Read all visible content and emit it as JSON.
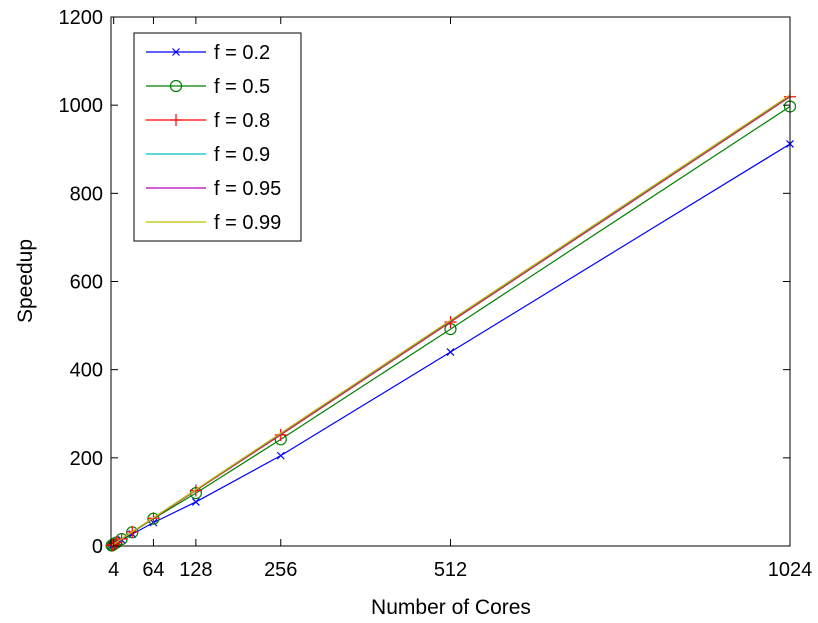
{
  "chart_data": {
    "type": "line",
    "xlabel": "Number of Cores",
    "ylabel": "Speedup",
    "xlim": [
      0,
      1024
    ],
    "ylim": [
      0,
      1200
    ],
    "xticks": [
      4,
      64,
      128,
      256,
      512,
      1024
    ],
    "yticks": [
      0,
      200,
      400,
      600,
      800,
      1000,
      1200
    ],
    "grid": false,
    "legend_position": "top-left",
    "x": [
      1,
      2,
      4,
      8,
      16,
      32,
      64,
      128,
      256,
      512,
      1024
    ],
    "series": [
      {
        "name": "f = 0.2",
        "color": "#0000ff",
        "marker": "x",
        "values": [
          1,
          1.8,
          3.6,
          7.2,
          14,
          27,
          53,
          100,
          205,
          440,
          912
        ]
      },
      {
        "name": "f = 0.5",
        "color": "#008000",
        "marker": "circle",
        "values": [
          1,
          1.9,
          3.9,
          7.8,
          15.6,
          31,
          62,
          120,
          242,
          492,
          997
        ]
      },
      {
        "name": "f = 0.8",
        "color": "#ff0000",
        "marker": "plus",
        "values": [
          1,
          2,
          4,
          8,
          16,
          32,
          63,
          126,
          252,
          508,
          1019
        ]
      },
      {
        "name": "f = 0.9",
        "color": "#00bfbf",
        "marker": "none",
        "values": [
          1,
          2,
          4,
          8,
          16,
          32,
          63.5,
          127,
          254,
          510,
          1021
        ]
      },
      {
        "name": "f = 0.95",
        "color": "#bf00bf",
        "marker": "none",
        "values": [
          1,
          2,
          4,
          8,
          16,
          32,
          63.8,
          127.5,
          255,
          511,
          1022
        ]
      },
      {
        "name": "f = 0.99",
        "color": "#bfbf00",
        "marker": "none",
        "values": [
          1,
          2,
          4,
          8,
          16,
          32,
          64,
          128,
          256,
          512,
          1023
        ]
      }
    ]
  }
}
